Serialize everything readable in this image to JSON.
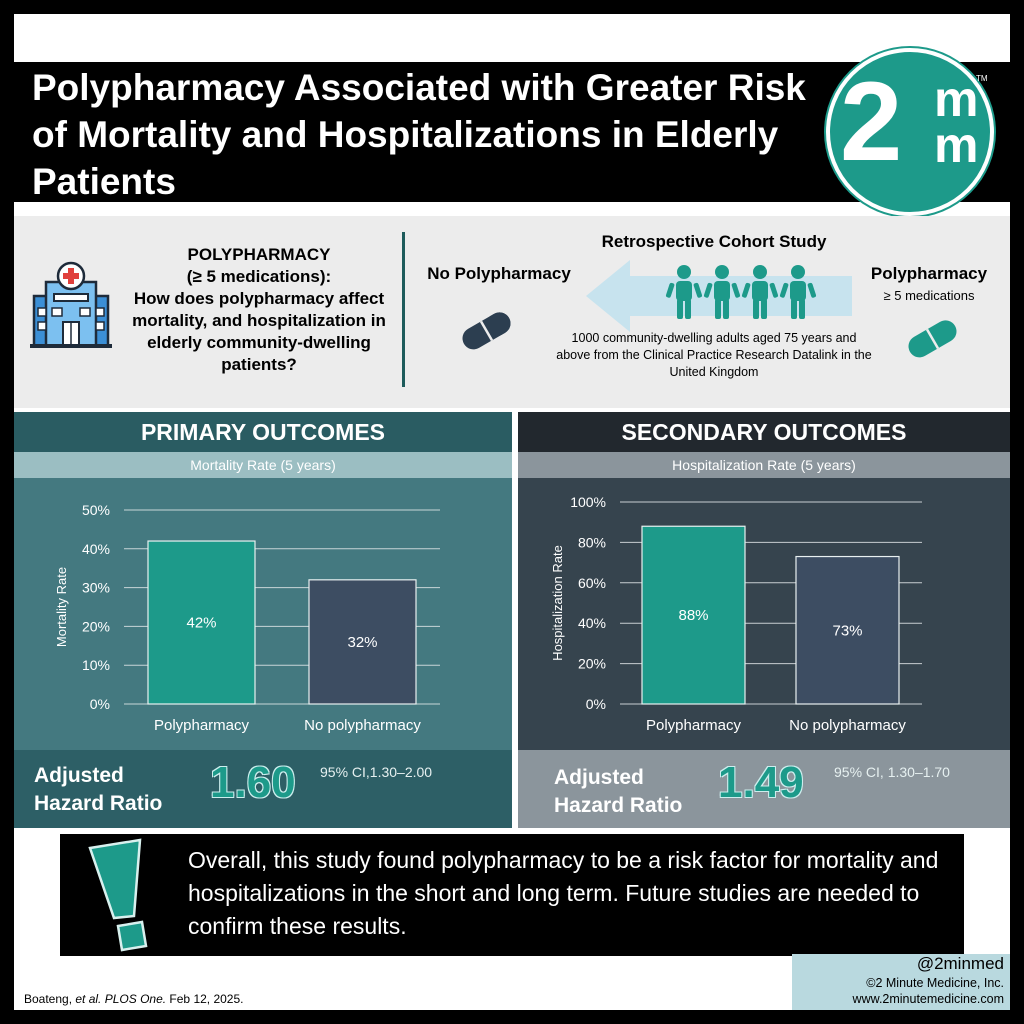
{
  "title": "Polypharmacy Associated with Greater Risk of Mortality and Hospitalizations in Elderly Patients",
  "logo": {
    "big": "2",
    "m1": "m",
    "m2": "m",
    "tm": "TM"
  },
  "study": {
    "question_heading": "POLYPHARMACY",
    "question_sub": "(≥ 5 medications):",
    "question_body": "How does polypharmacy affect mortality, and hospitalization in elderly community-dwelling patients?",
    "cohort_title": "Retrospective Cohort Study",
    "no_poly_label": "No Polypharmacy",
    "poly_label": "Polypharmacy",
    "poly_sub": "≥ 5 medications",
    "cohort_description": "1000 community-dwelling adults aged 75 years and above from the Clinical Practice Research Datalink in the United Kingdom"
  },
  "primary": {
    "heading": "PRIMARY OUTCOMES",
    "subheading": "Mortality Rate (5 years)",
    "ahr_label_1": "Adjusted",
    "ahr_label_2": "Hazard Ratio",
    "ahr_value": "1.60",
    "ci": "95% CI,1.30–2.00"
  },
  "secondary": {
    "heading": "SECONDARY OUTCOMES",
    "subheading": "Hospitalization Rate (5 years)",
    "ahr_label_1": "Adjusted",
    "ahr_label_2": "Hazard Ratio",
    "ahr_value": "1.49",
    "ci": "95% CI, 1.30–1.70"
  },
  "chart_data": [
    {
      "type": "bar",
      "categories": [
        "Polypharmacy",
        "No polypharmacy"
      ],
      "values": [
        42,
        32
      ],
      "value_labels": [
        "42%",
        "32%"
      ],
      "ylabel": "Mortality Rate",
      "ylim": [
        0,
        50
      ],
      "yticks": [
        0,
        10,
        20,
        30,
        40,
        50
      ],
      "ytick_labels": [
        "0%",
        "10%",
        "20%",
        "30%",
        "40%",
        "50%"
      ],
      "colors": [
        "#1d9a8a",
        "#3d4d62"
      ],
      "grid": true
    },
    {
      "type": "bar",
      "categories": [
        "Polypharmacy",
        "No polypharmacy"
      ],
      "values": [
        88,
        73
      ],
      "value_labels": [
        "88%",
        "73%"
      ],
      "ylabel": "Hospitalization Rate",
      "ylim": [
        0,
        100
      ],
      "yticks": [
        0,
        20,
        40,
        60,
        80,
        100
      ],
      "ytick_labels": [
        "0%",
        "20%",
        "40%",
        "60%",
        "80%",
        "100%"
      ],
      "colors": [
        "#1d9a8a",
        "#3d4d62"
      ],
      "grid": true
    }
  ],
  "conclusion": "Overall, this study found polypharmacy to be a risk factor for mortality and hospitalizations in the short and long term. Future studies are needed to confirm these results.",
  "citation": {
    "authors": "Boateng, ",
    "etal": "et al. PLOS One.",
    "date": " Feb 12, 2025."
  },
  "credit": {
    "handle": "@2minmed",
    "copyright": "©2 Minute Medicine, Inc.",
    "url": "www.2minutemedicine.com"
  },
  "colors": {
    "teal": "#1d9a8a",
    "dark_teal": "#2d5f66",
    "slate": "#3d4d62",
    "dark": "#2e3b44"
  }
}
